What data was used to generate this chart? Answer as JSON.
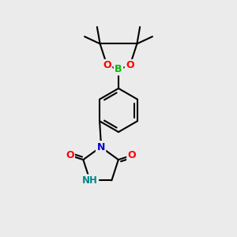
{
  "background_color": "#ebebeb",
  "bond_color": "#000000",
  "bond_width": 1.5,
  "B_color": "#00bb00",
  "O_color": "#ff0000",
  "N_color": "#0000cc",
  "NH_color": "#008888",
  "xlim": [
    0,
    10
  ],
  "ylim": [
    0,
    10
  ]
}
